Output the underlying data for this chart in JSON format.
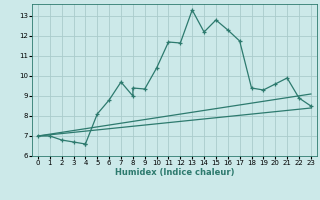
{
  "xlabel": "Humidex (Indice chaleur)",
  "background_color": "#cce9e9",
  "grid_color": "#aacccc",
  "line_color": "#2d7a6e",
  "xlim": [
    -0.5,
    23.5
  ],
  "ylim": [
    6.0,
    13.6
  ],
  "yticks": [
    6,
    7,
    8,
    9,
    10,
    11,
    12,
    13
  ],
  "xticks": [
    0,
    1,
    2,
    3,
    4,
    5,
    6,
    7,
    8,
    9,
    10,
    11,
    12,
    13,
    14,
    15,
    16,
    17,
    18,
    19,
    20,
    21,
    22,
    23
  ],
  "line1_x": [
    0,
    1,
    2,
    3,
    4,
    4,
    5,
    6,
    7,
    8,
    8,
    9,
    10,
    11,
    12,
    13,
    14,
    15,
    16,
    17,
    18,
    19,
    20,
    21,
    22,
    23
  ],
  "line1_y": [
    7.0,
    7.0,
    6.8,
    6.7,
    6.6,
    6.6,
    8.1,
    8.8,
    9.7,
    9.0,
    9.4,
    9.35,
    10.4,
    11.7,
    11.65,
    13.3,
    12.2,
    12.8,
    12.3,
    11.75,
    9.4,
    9.3,
    9.6,
    9.9,
    8.9,
    8.5
  ],
  "line2_x": [
    0,
    23
  ],
  "line2_y": [
    7.0,
    9.1
  ],
  "line3_x": [
    0,
    23
  ],
  "line3_y": [
    7.0,
    8.4
  ]
}
